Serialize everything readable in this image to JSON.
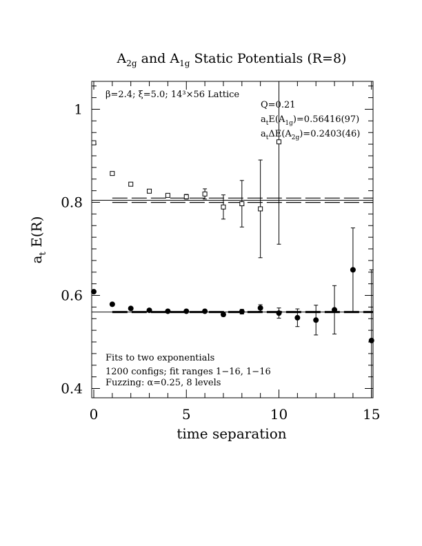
{
  "chart_data": {
    "type": "scatter",
    "title": {
      "text": "A2g and A1g Static Potentials (R=8)",
      "parts": [
        {
          "t": "A",
          "sub": "2g"
        },
        {
          "t": " and A",
          "sub": "1g"
        },
        {
          "t": " Static Potentials (R=8)"
        }
      ]
    },
    "xlabel": "time separation",
    "ylabel": {
      "t": "a",
      "sub": "t",
      "rest": " E(R)"
    },
    "xlim": [
      0,
      15
    ],
    "ylim": [
      0.38,
      1.06
    ],
    "xticks": [
      0,
      5,
      10,
      15
    ],
    "xtick_labels": [
      "0",
      "5",
      "10",
      "15"
    ],
    "yticks": [
      0.4,
      0.6,
      0.8,
      1.0
    ],
    "ytick_labels": [
      "0.4",
      "0.6",
      "0.8",
      "1"
    ],
    "grid": false,
    "annotations": {
      "lattice": "β=2.4; ξ=5.0; 14³×56 Lattice",
      "q": "Q=0.21",
      "e_a1g": {
        "pre": "a",
        "sub1": "t",
        "mid": "E(A",
        "sub2": "1g",
        "post": ")=0.56416(97)"
      },
      "de_a2g": {
        "pre": "a",
        "sub1": "t",
        "mid": "ΔE(A",
        "sub2": "2g",
        "post": ")=0.2403(46)"
      },
      "fits": "Fits to two exponentials",
      "configs": "1200 configs; fit ranges 1−16, 1−16",
      "fuzzing": "Fuzzing: α=0.25, 8 levels"
    },
    "fit_lines": {
      "a1g": {
        "value": 0.5642,
        "x_range": [
          1,
          16
        ]
      },
      "a2g_band": {
        "center": 0.8045,
        "upper": 0.8092,
        "lower": 0.7998,
        "x_range": [
          1,
          16
        ]
      }
    },
    "series": [
      {
        "marker": "open-square",
        "points": [
          {
            "x": 0,
            "y": 0.928,
            "err": 0.002
          },
          {
            "x": 1,
            "y": 0.862,
            "err": 0.002
          },
          {
            "x": 2,
            "y": 0.839,
            "err": 0.002
          },
          {
            "x": 3,
            "y": 0.824,
            "err": 0.002
          },
          {
            "x": 4,
            "y": 0.815,
            "err": 0.003
          },
          {
            "x": 5,
            "y": 0.812,
            "err": 0.005
          },
          {
            "x": 6,
            "y": 0.818,
            "err": 0.011
          },
          {
            "x": 7,
            "y": 0.79,
            "err": 0.026
          },
          {
            "x": 8,
            "y": 0.797,
            "err": 0.05
          },
          {
            "x": 9,
            "y": 0.786,
            "err": 0.105
          },
          {
            "x": 10,
            "y": 0.93,
            "err": 0.22
          }
        ]
      },
      {
        "marker": "filled-circle",
        "points": [
          {
            "x": 0,
            "y": 0.608,
            "err": 0.002
          },
          {
            "x": 1,
            "y": 0.581,
            "err": 0.002
          },
          {
            "x": 2,
            "y": 0.572,
            "err": 0.002
          },
          {
            "x": 3,
            "y": 0.568,
            "err": 0.002
          },
          {
            "x": 4,
            "y": 0.566,
            "err": 0.002
          },
          {
            "x": 5,
            "y": 0.566,
            "err": 0.002
          },
          {
            "x": 6,
            "y": 0.566,
            "err": 0.003
          },
          {
            "x": 7,
            "y": 0.559,
            "err": 0.004
          },
          {
            "x": 8,
            "y": 0.565,
            "err": 0.005
          },
          {
            "x": 9,
            "y": 0.573,
            "err": 0.007
          },
          {
            "x": 10,
            "y": 0.562,
            "err": 0.011
          },
          {
            "x": 11,
            "y": 0.552,
            "err": 0.019
          },
          {
            "x": 12,
            "y": 0.547,
            "err": 0.032
          },
          {
            "x": 13,
            "y": 0.569,
            "err": 0.052
          },
          {
            "x": 14,
            "y": 0.655,
            "err": 0.09
          },
          {
            "x": 15,
            "y": 0.503,
            "err": 0.152
          }
        ]
      }
    ]
  }
}
